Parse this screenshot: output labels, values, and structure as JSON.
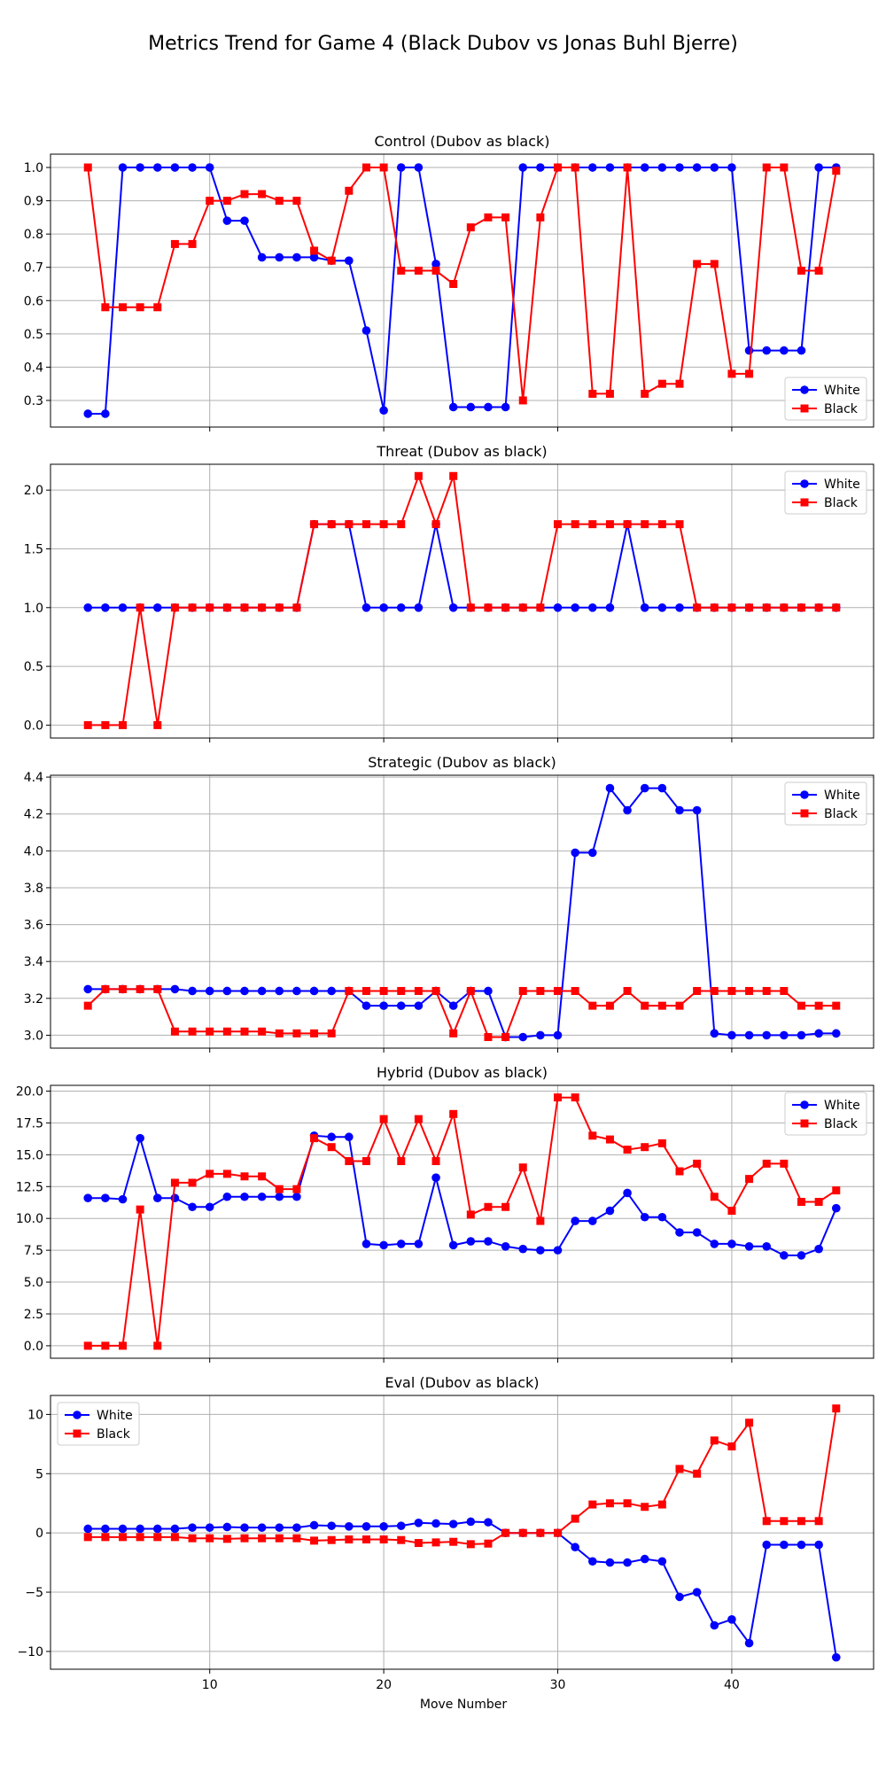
{
  "figure": {
    "title": "Metrics Trend for Game 4 (Black Dubov vs Jonas Buhl Bjerre)",
    "xlabel": "Move Number"
  },
  "colors": {
    "white_series": "#0000ff",
    "black_series": "#ff0000",
    "grid": "#b0b0b0"
  },
  "chart_data": [
    {
      "type": "line",
      "title": "Control (Dubov as black)",
      "ylim": [
        0.22,
        1.04
      ],
      "yticks": [
        0.3,
        0.4,
        0.5,
        0.6,
        0.7,
        0.8,
        0.9,
        1.0
      ],
      "yticklabels": [
        "0.3",
        "0.4",
        "0.5",
        "0.6",
        "0.7",
        "0.8",
        "0.9",
        "1.0"
      ],
      "grid": true,
      "legend": "lower-right",
      "x": [
        3,
        4,
        5,
        6,
        7,
        8,
        9,
        10,
        11,
        12,
        13,
        14,
        15,
        16,
        17,
        18,
        19,
        20,
        21,
        22,
        23,
        24,
        25,
        26,
        27,
        28,
        29,
        30,
        31,
        32,
        33,
        34,
        35,
        36,
        37,
        38,
        39,
        40,
        41,
        42,
        43,
        44,
        45,
        46
      ],
      "series": [
        {
          "name": "White",
          "marker": "circle",
          "values": [
            0.26,
            0.26,
            1.0,
            1.0,
            1.0,
            1.0,
            1.0,
            1.0,
            0.84,
            0.84,
            0.73,
            0.73,
            0.73,
            0.73,
            0.72,
            0.72,
            0.51,
            0.27,
            1.0,
            1.0,
            0.71,
            0.28,
            0.28,
            0.28,
            0.28,
            1.0,
            1.0,
            1.0,
            1.0,
            1.0,
            1.0,
            1.0,
            1.0,
            1.0,
            1.0,
            1.0,
            1.0,
            1.0,
            0.45,
            0.45,
            0.45,
            0.45,
            1.0,
            1.0
          ]
        },
        {
          "name": "Black",
          "marker": "square",
          "values": [
            1.0,
            0.58,
            0.58,
            0.58,
            0.58,
            0.77,
            0.77,
            0.9,
            0.9,
            0.92,
            0.92,
            0.9,
            0.9,
            0.75,
            0.72,
            0.93,
            1.0,
            1.0,
            0.69,
            0.69,
            0.69,
            0.65,
            0.82,
            0.85,
            0.85,
            0.3,
            0.85,
            1.0,
            1.0,
            0.32,
            0.32,
            1.0,
            0.32,
            0.35,
            0.35,
            0.71,
            0.71,
            0.38,
            0.38,
            1.0,
            1.0,
            0.69,
            0.69,
            0.99
          ]
        }
      ]
    },
    {
      "type": "line",
      "title": "Threat (Dubov as black)",
      "ylim": [
        -0.11,
        2.22
      ],
      "yticks": [
        0.0,
        0.5,
        1.0,
        1.5,
        2.0
      ],
      "yticklabels": [
        "0.0",
        "0.5",
        "1.0",
        "1.5",
        "2.0"
      ],
      "grid": true,
      "legend": "upper-right",
      "x": [
        3,
        4,
        5,
        6,
        7,
        8,
        9,
        10,
        11,
        12,
        13,
        14,
        15,
        16,
        17,
        18,
        19,
        20,
        21,
        22,
        23,
        24,
        25,
        26,
        27,
        28,
        29,
        30,
        31,
        32,
        33,
        34,
        35,
        36,
        37,
        38,
        39,
        40,
        41,
        42,
        43,
        44,
        45,
        46
      ],
      "series": [
        {
          "name": "White",
          "marker": "circle",
          "values": [
            1,
            1,
            1,
            1,
            1,
            1,
            1,
            1,
            1,
            1,
            1,
            1,
            1,
            1.71,
            1.71,
            1.71,
            1,
            1,
            1,
            1,
            1.71,
            1,
            1,
            1,
            1,
            1,
            1,
            1,
            1,
            1,
            1,
            1.71,
            1,
            1,
            1,
            1,
            1,
            1,
            1,
            1,
            1,
            1,
            1,
            1
          ]
        },
        {
          "name": "Black",
          "marker": "square",
          "values": [
            0,
            0,
            0,
            1,
            0,
            1,
            1,
            1,
            1,
            1,
            1,
            1,
            1,
            1.71,
            1.71,
            1.71,
            1.71,
            1.71,
            1.71,
            2.12,
            1.71,
            2.12,
            1,
            1,
            1,
            1,
            1,
            1.71,
            1.71,
            1.71,
            1.71,
            1.71,
            1.71,
            1.71,
            1.71,
            1,
            1,
            1,
            1,
            1,
            1,
            1,
            1,
            1
          ]
        }
      ]
    },
    {
      "type": "line",
      "title": "Strategic (Dubov as black)",
      "ylim": [
        2.93,
        4.41
      ],
      "yticks": [
        3.0,
        3.2,
        3.4,
        3.6,
        3.8,
        4.0,
        4.2,
        4.4
      ],
      "yticklabels": [
        "3.0",
        "3.2",
        "3.4",
        "3.6",
        "3.8",
        "4.0",
        "4.2",
        "4.4"
      ],
      "grid": true,
      "legend": "upper-right",
      "x": [
        3,
        4,
        5,
        6,
        7,
        8,
        9,
        10,
        11,
        12,
        13,
        14,
        15,
        16,
        17,
        18,
        19,
        20,
        21,
        22,
        23,
        24,
        25,
        26,
        27,
        28,
        29,
        30,
        31,
        32,
        33,
        34,
        35,
        36,
        37,
        38,
        39,
        40,
        41,
        42,
        43,
        44,
        45,
        46
      ],
      "series": [
        {
          "name": "White",
          "marker": "circle",
          "values": [
            3.25,
            3.25,
            3.25,
            3.25,
            3.25,
            3.25,
            3.24,
            3.24,
            3.24,
            3.24,
            3.24,
            3.24,
            3.24,
            3.24,
            3.24,
            3.24,
            3.16,
            3.16,
            3.16,
            3.16,
            3.24,
            3.16,
            3.24,
            3.24,
            2.99,
            2.99,
            3.0,
            3.0,
            3.99,
            3.99,
            4.34,
            4.22,
            4.34,
            4.34,
            4.22,
            4.22,
            3.01,
            3.0,
            3.0,
            3.0,
            3.0,
            3.0,
            3.01,
            3.01
          ]
        },
        {
          "name": "Black",
          "marker": "square",
          "values": [
            3.16,
            3.25,
            3.25,
            3.25,
            3.25,
            3.02,
            3.02,
            3.02,
            3.02,
            3.02,
            3.02,
            3.01,
            3.01,
            3.01,
            3.01,
            3.24,
            3.24,
            3.24,
            3.24,
            3.24,
            3.24,
            3.01,
            3.24,
            2.99,
            2.99,
            3.24,
            3.24,
            3.24,
            3.24,
            3.16,
            3.16,
            3.24,
            3.16,
            3.16,
            3.16,
            3.24,
            3.24,
            3.24,
            3.24,
            3.24,
            3.24,
            3.16,
            3.16,
            3.16
          ]
        }
      ]
    },
    {
      "type": "line",
      "title": "Hybrid (Dubov as black)",
      "ylim": [
        -0.98,
        20.45
      ],
      "yticks": [
        0.0,
        2.5,
        5.0,
        7.5,
        10.0,
        12.5,
        15.0,
        17.5,
        20.0
      ],
      "yticklabels": [
        "0.0",
        "2.5",
        "5.0",
        "7.5",
        "10.0",
        "12.5",
        "15.0",
        "17.5",
        "20.0"
      ],
      "grid": true,
      "legend": "upper-right",
      "x": [
        3,
        4,
        5,
        6,
        7,
        8,
        9,
        10,
        11,
        12,
        13,
        14,
        15,
        16,
        17,
        18,
        19,
        20,
        21,
        22,
        23,
        24,
        25,
        26,
        27,
        28,
        29,
        30,
        31,
        32,
        33,
        34,
        35,
        36,
        37,
        38,
        39,
        40,
        41,
        42,
        43,
        44,
        45,
        46
      ],
      "series": [
        {
          "name": "White",
          "marker": "circle",
          "values": [
            11.6,
            11.6,
            11.5,
            16.3,
            11.6,
            11.6,
            10.9,
            10.9,
            11.7,
            11.7,
            11.7,
            11.7,
            11.7,
            16.5,
            16.4,
            16.4,
            8.0,
            7.9,
            8.0,
            8.0,
            13.2,
            7.9,
            8.2,
            8.2,
            7.8,
            7.6,
            7.5,
            7.5,
            9.8,
            9.8,
            10.6,
            12.0,
            10.1,
            10.1,
            8.9,
            8.9,
            8.0,
            8.0,
            7.8,
            7.8,
            7.1,
            7.1,
            7.6,
            10.8
          ]
        },
        {
          "name": "Black",
          "marker": "square",
          "values": [
            0,
            0,
            0,
            10.7,
            0,
            12.8,
            12.8,
            13.5,
            13.5,
            13.3,
            13.3,
            12.3,
            12.3,
            16.3,
            15.6,
            14.5,
            14.5,
            17.8,
            14.5,
            17.8,
            14.5,
            18.2,
            10.3,
            10.9,
            10.9,
            14.0,
            9.8,
            19.5,
            19.5,
            16.5,
            16.2,
            15.4,
            15.6,
            15.9,
            13.7,
            14.3,
            11.7,
            10.6,
            13.1,
            14.3,
            14.3,
            11.3,
            11.3,
            12.2
          ]
        }
      ]
    },
    {
      "type": "line",
      "title": "Eval (Dubov as black)",
      "ylim": [
        -11.5,
        11.6
      ],
      "yticks": [
        -10,
        -5,
        0,
        5,
        10
      ],
      "yticklabels": [
        "−10",
        "−5",
        "0",
        "5",
        "10"
      ],
      "grid": true,
      "legend": "upper-left",
      "xticks": [
        10,
        20,
        30,
        40
      ],
      "xticklabels": [
        "10",
        "20",
        "30",
        "40"
      ],
      "x": [
        3,
        4,
        5,
        6,
        7,
        8,
        9,
        10,
        11,
        12,
        13,
        14,
        15,
        16,
        17,
        18,
        19,
        20,
        21,
        22,
        23,
        24,
        25,
        26,
        27,
        28,
        29,
        30,
        31,
        32,
        33,
        34,
        35,
        36,
        37,
        38,
        39,
        40,
        41,
        42,
        43,
        44,
        45,
        46
      ],
      "series": [
        {
          "name": "White",
          "marker": "circle",
          "values": [
            0.35,
            0.35,
            0.35,
            0.35,
            0.35,
            0.35,
            0.45,
            0.45,
            0.5,
            0.45,
            0.45,
            0.45,
            0.45,
            0.65,
            0.6,
            0.55,
            0.55,
            0.55,
            0.6,
            0.85,
            0.8,
            0.75,
            0.95,
            0.9,
            0,
            0,
            0,
            0,
            -1.2,
            -2.4,
            -2.5,
            -2.5,
            -2.2,
            -2.4,
            -5.4,
            -5.0,
            -7.8,
            -7.3,
            -9.3,
            -1.0,
            -1.0,
            -1.0,
            -1.0,
            -10.5
          ]
        },
        {
          "name": "Black",
          "marker": "square",
          "values": [
            -0.35,
            -0.35,
            -0.35,
            -0.35,
            -0.35,
            -0.35,
            -0.45,
            -0.45,
            -0.5,
            -0.45,
            -0.45,
            -0.45,
            -0.45,
            -0.65,
            -0.6,
            -0.55,
            -0.55,
            -0.55,
            -0.6,
            -0.85,
            -0.8,
            -0.75,
            -0.95,
            -0.9,
            0,
            0,
            0,
            0,
            1.2,
            2.4,
            2.5,
            2.5,
            2.2,
            2.4,
            5.4,
            5.0,
            7.8,
            7.3,
            9.3,
            1.0,
            1.0,
            1.0,
            1.0,
            10.5
          ]
        }
      ]
    }
  ]
}
